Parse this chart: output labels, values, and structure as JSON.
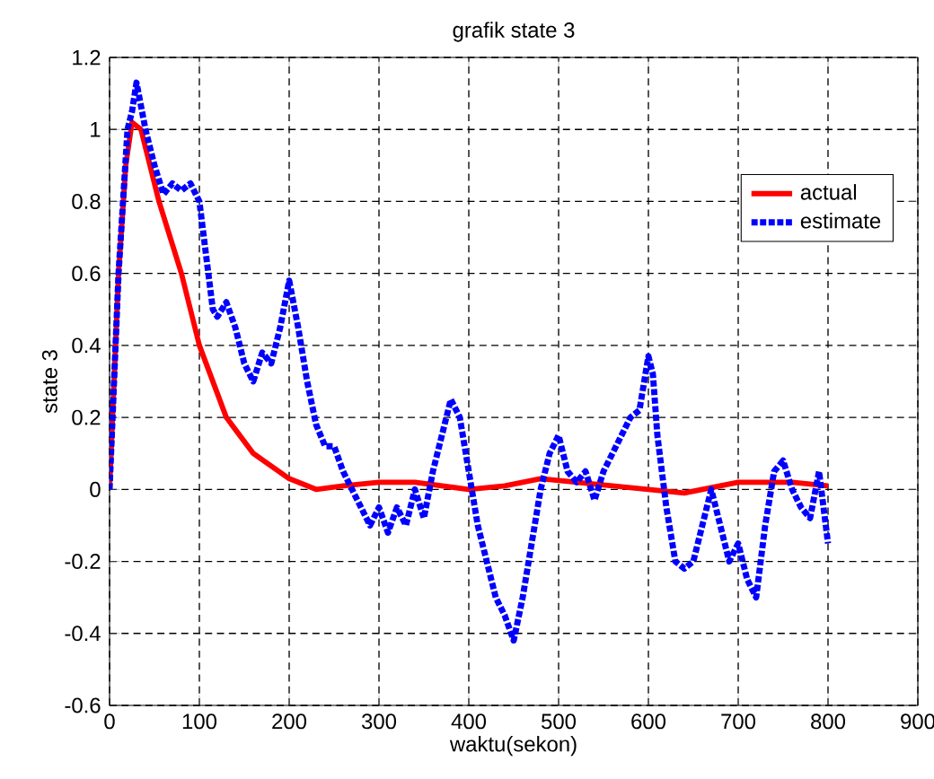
{
  "chart_data": {
    "type": "line",
    "title": "grafik state 3",
    "xlabel": "waktu(sekon)",
    "ylabel": "state 3",
    "xlim": [
      0,
      900
    ],
    "ylim": [
      -0.6,
      1.2
    ],
    "xticks": [
      0,
      100,
      200,
      300,
      400,
      500,
      600,
      700,
      800,
      900
    ],
    "yticks": [
      -0.6,
      -0.4,
      -0.2,
      0,
      0.2,
      0.4,
      0.6,
      0.8,
      1,
      1.2
    ],
    "grid": true,
    "legend": "top right",
    "series": [
      {
        "name": "actual",
        "color": "#ff0000",
        "line_style": "solid",
        "x": [
          0,
          10,
          18,
          25,
          35,
          55,
          80,
          100,
          130,
          160,
          200,
          230,
          260,
          300,
          340,
          400,
          440,
          480,
          520,
          600,
          640,
          700,
          760,
          800
        ],
        "values": [
          0,
          0.6,
          0.9,
          1.02,
          1.0,
          0.8,
          0.6,
          0.4,
          0.2,
          0.1,
          0.03,
          0,
          0.01,
          0.02,
          0.02,
          0,
          0.01,
          0.03,
          0.02,
          0,
          -0.01,
          0.02,
          0.02,
          0.01
        ]
      },
      {
        "name": "estimate",
        "color": "#0000ff",
        "line_style": "dotted",
        "x": [
          0,
          10,
          20,
          25,
          30,
          40,
          50,
          60,
          70,
          80,
          90,
          100,
          110,
          115,
          120,
          130,
          140,
          150,
          160,
          170,
          180,
          190,
          200,
          210,
          220,
          230,
          240,
          250,
          260,
          270,
          280,
          290,
          300,
          310,
          320,
          330,
          340,
          350,
          360,
          370,
          380,
          390,
          400,
          410,
          420,
          430,
          440,
          450,
          460,
          470,
          480,
          490,
          500,
          510,
          520,
          530,
          540,
          550,
          560,
          570,
          580,
          590,
          600,
          605,
          610,
          620,
          630,
          640,
          650,
          660,
          670,
          680,
          690,
          700,
          710,
          720,
          730,
          740,
          750,
          760,
          770,
          780,
          790,
          800
        ],
        "values": [
          0,
          0.6,
          1.0,
          1.05,
          1.13,
          1.0,
          0.9,
          0.82,
          0.85,
          0.83,
          0.85,
          0.8,
          0.6,
          0.5,
          0.48,
          0.52,
          0.45,
          0.35,
          0.3,
          0.38,
          0.35,
          0.45,
          0.58,
          0.45,
          0.3,
          0.18,
          0.12,
          0.12,
          0.05,
          0,
          -0.05,
          -0.1,
          -0.05,
          -0.12,
          -0.05,
          -0.1,
          0,
          -0.08,
          0.05,
          0.15,
          0.25,
          0.2,
          0.05,
          -0.1,
          -0.2,
          -0.3,
          -0.35,
          -0.42,
          -0.3,
          -0.15,
          0,
          0.1,
          0.15,
          0.05,
          0.02,
          0.05,
          -0.03,
          0.05,
          0.1,
          0.15,
          0.2,
          0.22,
          0.37,
          0.32,
          0.15,
          -0.05,
          -0.2,
          -0.22,
          -0.2,
          -0.1,
          0,
          -0.1,
          -0.2,
          -0.15,
          -0.25,
          -0.3,
          -0.1,
          0.05,
          0.08,
          0,
          -0.05,
          -0.08,
          0.05,
          -0.15
        ]
      }
    ]
  }
}
